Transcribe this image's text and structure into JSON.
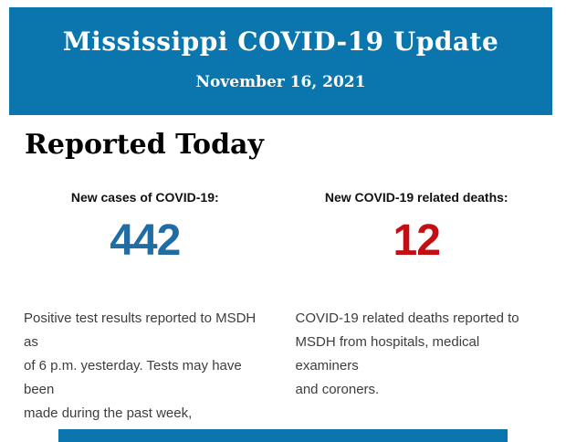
{
  "header": {
    "title": "Mississippi COVID-19 Update",
    "date": "November 16, 2021",
    "background_color": "#0b76ad",
    "text_color": "#ffffff"
  },
  "section": {
    "heading": "Reported Today"
  },
  "stats": {
    "cases": {
      "label": "New cases of COVID-19:",
      "value": "442",
      "value_color": "#1f6da4",
      "description": "Positive test results reported to MSDH as\nof 6 p.m. yesterday. Tests may have been\nmade during the past week,"
    },
    "deaths": {
      "label": "New COVID-19 related deaths:",
      "value": "12",
      "value_color": "#c30e13",
      "description": "COVID-19 related deaths reported to\nMSDH from hospitals, medical examiners\nand coroners."
    }
  },
  "footer": {
    "background_color": "#0b76ad"
  }
}
